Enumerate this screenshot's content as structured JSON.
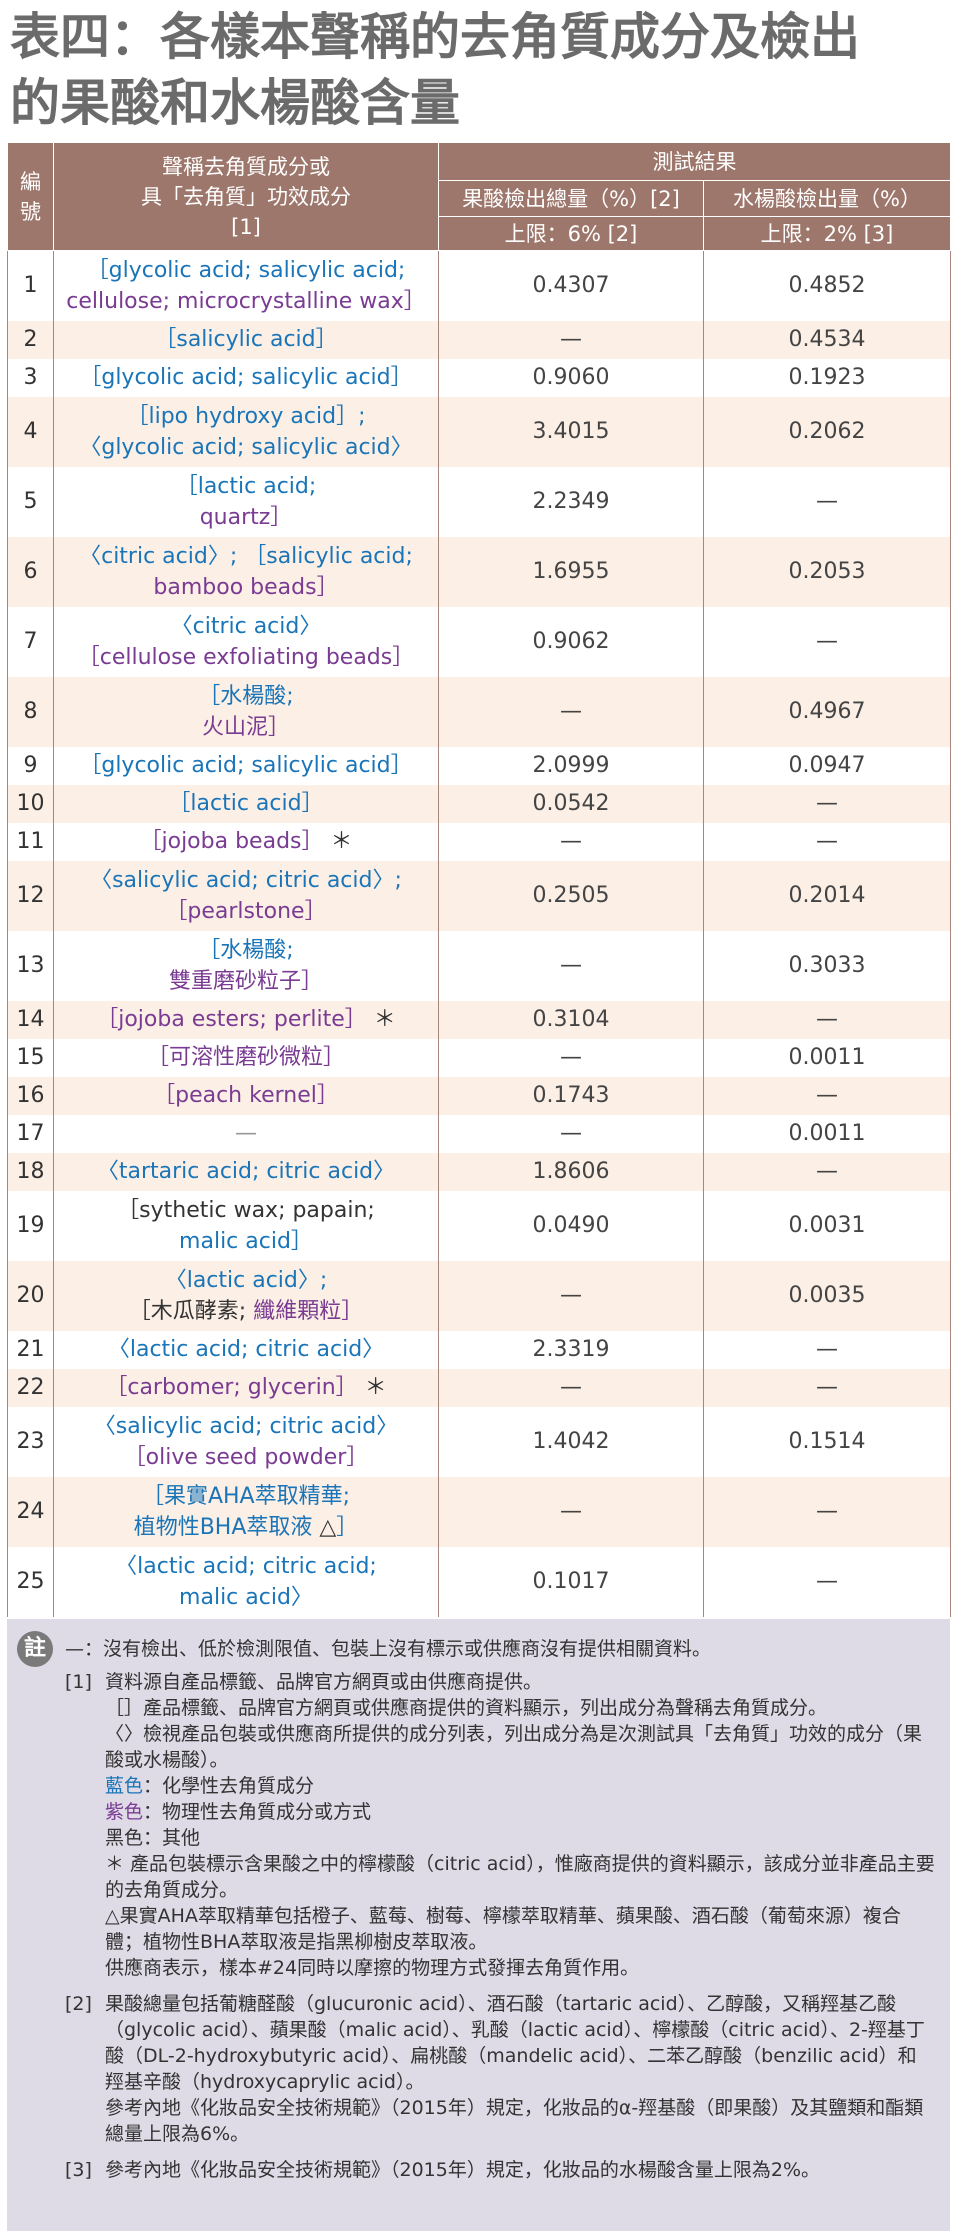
{
  "title": [
    "表四：各樣本聲稱的去角質成分及檢出",
    "的果酸和水楊酸含量"
  ],
  "table": {
    "header": {
      "no": "編號",
      "ingredients": [
        "聲稱去角質成分或",
        "具「去角質」功效成分",
        "[1]"
      ],
      "results": "測試結果",
      "columns": [
        "果酸檢出總量（%）[2]",
        "水楊酸檢出量（%）"
      ],
      "limits": [
        "上限：6% [2]",
        "上限：2% [3]"
      ]
    },
    "rows": [
      {
        "no": "1",
        "ingredients": [
          [
            {
              "text": "［glycolic acid; salicylic acid;",
              "color": "#1a75b8"
            }
          ],
          [
            {
              "text": "cellulose; microcrystalline wax］",
              "color": "#7a3b92"
            }
          ]
        ],
        "values": [
          "0.4307",
          "0.4852"
        ]
      },
      {
        "no": "2",
        "ingredients": [
          [
            {
              "text": "［salicylic acid］",
              "color": "#1a75b8"
            }
          ]
        ],
        "values": [
          "—",
          "0.4534"
        ]
      },
      {
        "no": "3",
        "ingredients": [
          [
            {
              "text": "［glycolic acid; salicylic acid］",
              "color": "#1a75b8"
            }
          ]
        ],
        "values": [
          "0.9060",
          "0.1923"
        ]
      },
      {
        "no": "4",
        "ingredients": [
          [
            {
              "text": "［lipo hydroxy acid］;",
              "color": "#1a75b8"
            }
          ],
          [
            {
              "text": "〈glycolic acid; salicylic acid〉",
              "color": "#1a75b8"
            }
          ]
        ],
        "values": [
          "3.4015",
          "0.2062"
        ]
      },
      {
        "no": "5",
        "ingredients": [
          [
            {
              "text": "［lactic acid;",
              "color": "#1a75b8"
            }
          ],
          [
            {
              "text": "quartz］",
              "color": "#7a3b92"
            }
          ]
        ],
        "values": [
          "2.2349",
          "—"
        ]
      },
      {
        "no": "6",
        "ingredients": [
          [
            {
              "text": "〈citric acid〉; ［salicylic acid;",
              "color": "#1a75b8"
            }
          ],
          [
            {
              "text": "bamboo beads］",
              "color": "#7a3b92"
            }
          ]
        ],
        "values": [
          "1.6955",
          "0.2053"
        ]
      },
      {
        "no": "7",
        "ingredients": [
          [
            {
              "text": "〈citric acid〉",
              "color": "#1a75b8"
            }
          ],
          [
            {
              "text": "［cellulose exfoliating beads］",
              "color": "#7a3b92"
            }
          ]
        ],
        "values": [
          "0.9062",
          "—"
        ]
      },
      {
        "no": "8",
        "ingredients": [
          [
            {
              "text": "［水楊酸;",
              "color": "#1a75b8"
            }
          ],
          [
            {
              "text": "火山泥］",
              "color": "#7a3b92"
            }
          ]
        ],
        "values": [
          "—",
          "0.4967"
        ]
      },
      {
        "no": "9",
        "ingredients": [
          [
            {
              "text": "［glycolic acid; salicylic acid］",
              "color": "#1a75b8"
            }
          ]
        ],
        "values": [
          "2.0999",
          "0.0947"
        ]
      },
      {
        "no": "10",
        "ingredients": [
          [
            {
              "text": "［lactic acid］",
              "color": "#1a75b8"
            }
          ]
        ],
        "values": [
          "0.0542",
          "—"
        ]
      },
      {
        "no": "11",
        "ingredients": [
          [
            {
              "text": "［jojoba beads］",
              "color": "#7a3b92"
            },
            {
              "text": " ＊",
              "color": "#333333"
            }
          ]
        ],
        "values": [
          "—",
          "—"
        ]
      },
      {
        "no": "12",
        "ingredients": [
          [
            {
              "text": "〈salicylic acid; citric acid〉;",
              "color": "#1a75b8"
            }
          ],
          [
            {
              "text": "［pearlstone］",
              "color": "#7a3b92"
            }
          ]
        ],
        "values": [
          "0.2505",
          "0.2014"
        ]
      },
      {
        "no": "13",
        "ingredients": [
          [
            {
              "text": "［水楊酸;",
              "color": "#1a75b8"
            }
          ],
          [
            {
              "text": "雙重磨砂粒子］",
              "color": "#7a3b92"
            }
          ]
        ],
        "values": [
          "—",
          "0.3033"
        ]
      },
      {
        "no": "14",
        "ingredients": [
          [
            {
              "text": "［jojoba esters; perlite］",
              "color": "#7a3b92"
            },
            {
              "text": " ＊",
              "color": "#333333"
            }
          ]
        ],
        "values": [
          "0.3104",
          "—"
        ]
      },
      {
        "no": "15",
        "ingredients": [
          [
            {
              "text": "［可溶性磨砂微粒］",
              "color": "#7a3b92"
            }
          ]
        ],
        "values": [
          "—",
          "0.0011"
        ]
      },
      {
        "no": "16",
        "ingredients": [
          [
            {
              "text": "［peach kernel］",
              "color": "#7a3b92"
            }
          ]
        ],
        "values": [
          "0.1743",
          "—"
        ]
      },
      {
        "no": "17",
        "ingredients": [
          [
            {
              "text": "—",
              "color": "#999999"
            }
          ]
        ],
        "values": [
          "—",
          "0.0011"
        ]
      },
      {
        "no": "18",
        "ingredients": [
          [
            {
              "text": "〈tartaric acid; citric acid〉",
              "color": "#1a75b8"
            }
          ]
        ],
        "values": [
          "1.8606",
          "—"
        ]
      },
      {
        "no": "19",
        "ingredients": [
          [
            {
              "text": "［sythetic wax; papain;",
              "color": "#333333"
            }
          ],
          [
            {
              "text": "malic acid］",
              "color": "#1a75b8"
            }
          ]
        ],
        "values": [
          "0.0490",
          "0.0031"
        ]
      },
      {
        "no": "20",
        "ingredients": [
          [
            {
              "text": "〈lactic acid〉;",
              "color": "#1a75b8"
            }
          ],
          [
            {
              "text": "［木瓜酵素; ",
              "color": "#333333"
            },
            {
              "text": "纖維顆粒］",
              "color": "#7a3b92"
            }
          ]
        ],
        "values": [
          "—",
          "0.0035"
        ]
      },
      {
        "no": "21",
        "ingredients": [
          [
            {
              "text": "〈lactic acid; citric acid〉",
              "color": "#1a75b8"
            }
          ]
        ],
        "values": [
          "2.3319",
          "—"
        ]
      },
      {
        "no": "22",
        "ingredients": [
          [
            {
              "text": "［carbomer; glycerin］",
              "color": "#7a3b92"
            },
            {
              "text": " ＊",
              "color": "#333333"
            }
          ]
        ],
        "values": [
          "—",
          "—"
        ]
      },
      {
        "no": "23",
        "ingredients": [
          [
            {
              "text": "〈salicylic acid; citric acid〉",
              "color": "#1a75b8"
            }
          ],
          [
            {
              "text": "［olive seed powder］",
              "color": "#7a3b92"
            }
          ]
        ],
        "values": [
          "1.4042",
          "0.1514"
        ]
      },
      {
        "no": "24",
        "ingredients": [
          [
            {
              "text": "［果實AHA萃取精華;",
              "color": "#1a75b8"
            }
          ],
          [
            {
              "text": "植物性BHA萃取液 ",
              "color": "#1a75b8"
            },
            {
              "text": "△",
              "color": "#333333"
            },
            {
              "text": "］",
              "color": "#1a75b8"
            }
          ]
        ],
        "values": [
          "—",
          "—"
        ]
      },
      {
        "no": "25",
        "ingredients": [
          [
            {
              "text": "〈lactic acid; citric acid;",
              "color": "#1a75b8"
            }
          ],
          [
            {
              "text": "malic acid〉",
              "color": "#1a75b8"
            }
          ]
        ],
        "values": [
          "0.1017",
          "—"
        ]
      }
    ]
  },
  "notes": {
    "icon": "註",
    "dash": "—：沒有檢出、低於檢測限值、包裝上沒有標示或供應商沒有提供相關資料。",
    "groups": [
      {
        "marker": "[1]",
        "paragraphs": [
          [
            {
              "text": "資料源自產品標籤、品牌官方網頁或由供應商提供。"
            }
          ],
          [
            {
              "text": "［］產品標籤、品牌官方網頁或供應商提供的資料顯示，列出成分為聲稱去角質成分。"
            }
          ],
          [
            {
              "text": "〈〉檢視產品包裝或供應商所提供的成分列表，列出成分為是次測試具「去角質」功效的成分（果酸或水楊酸）。"
            }
          ],
          [
            {
              "text": "藍色",
              "color": "#1a75b8"
            },
            {
              "text": "：化學性去角質成分"
            }
          ],
          [
            {
              "text": "紫色",
              "color": "#7a3b92"
            },
            {
              "text": "：物理性去角質成分或方式"
            }
          ],
          [
            {
              "text": "黑色：其他"
            }
          ],
          [
            {
              "text": "＊ 產品包裝標示含果酸之中的檸檬酸（citric acid），惟廠商提供的資料顯示，該成分並非產品主要的去角質成分。"
            }
          ],
          [
            {
              "text": "△果實AHA萃取精華包括橙子、藍莓、樹莓、檸檬萃取精華、蘋果酸、酒石酸（葡萄來源）複合體；植物性BHA萃取液是指黑柳樹皮萃取液。"
            }
          ],
          [
            {
              "text": "供應商表示，樣本#24同時以摩擦的物理方式發揮去角質作用。"
            }
          ]
        ]
      },
      {
        "marker": "[2]",
        "paragraphs": [
          [
            {
              "text": "果酸總量包括葡糖醛酸（glucuronic acid）、酒石酸（tartaric acid）、乙醇酸，又稱羥基乙酸（glycolic acid）、蘋果酸（malic acid）、乳酸（lactic acid）、檸檬酸（citric acid）、2-羥基丁酸（DL-2-hydroxybutyric acid）、扁桃酸（mandelic acid）、二苯乙醇酸（benzilic acid）和羥基辛酸（hydroxycaprylic acid）。"
            }
          ],
          [
            {
              "text": "參考內地《化妝品安全技術規範》（2015年）規定，化妝品的α-羥基酸（即果酸）及其鹽類和酯類總量上限為6%。"
            }
          ]
        ]
      },
      {
        "marker": "[3]",
        "paragraphs": [
          [
            {
              "text": "參考內地《化妝品安全技術規範》（2015年）規定，化妝品的水楊酸含量上限為2%。"
            }
          ]
        ]
      }
    ]
  }
}
